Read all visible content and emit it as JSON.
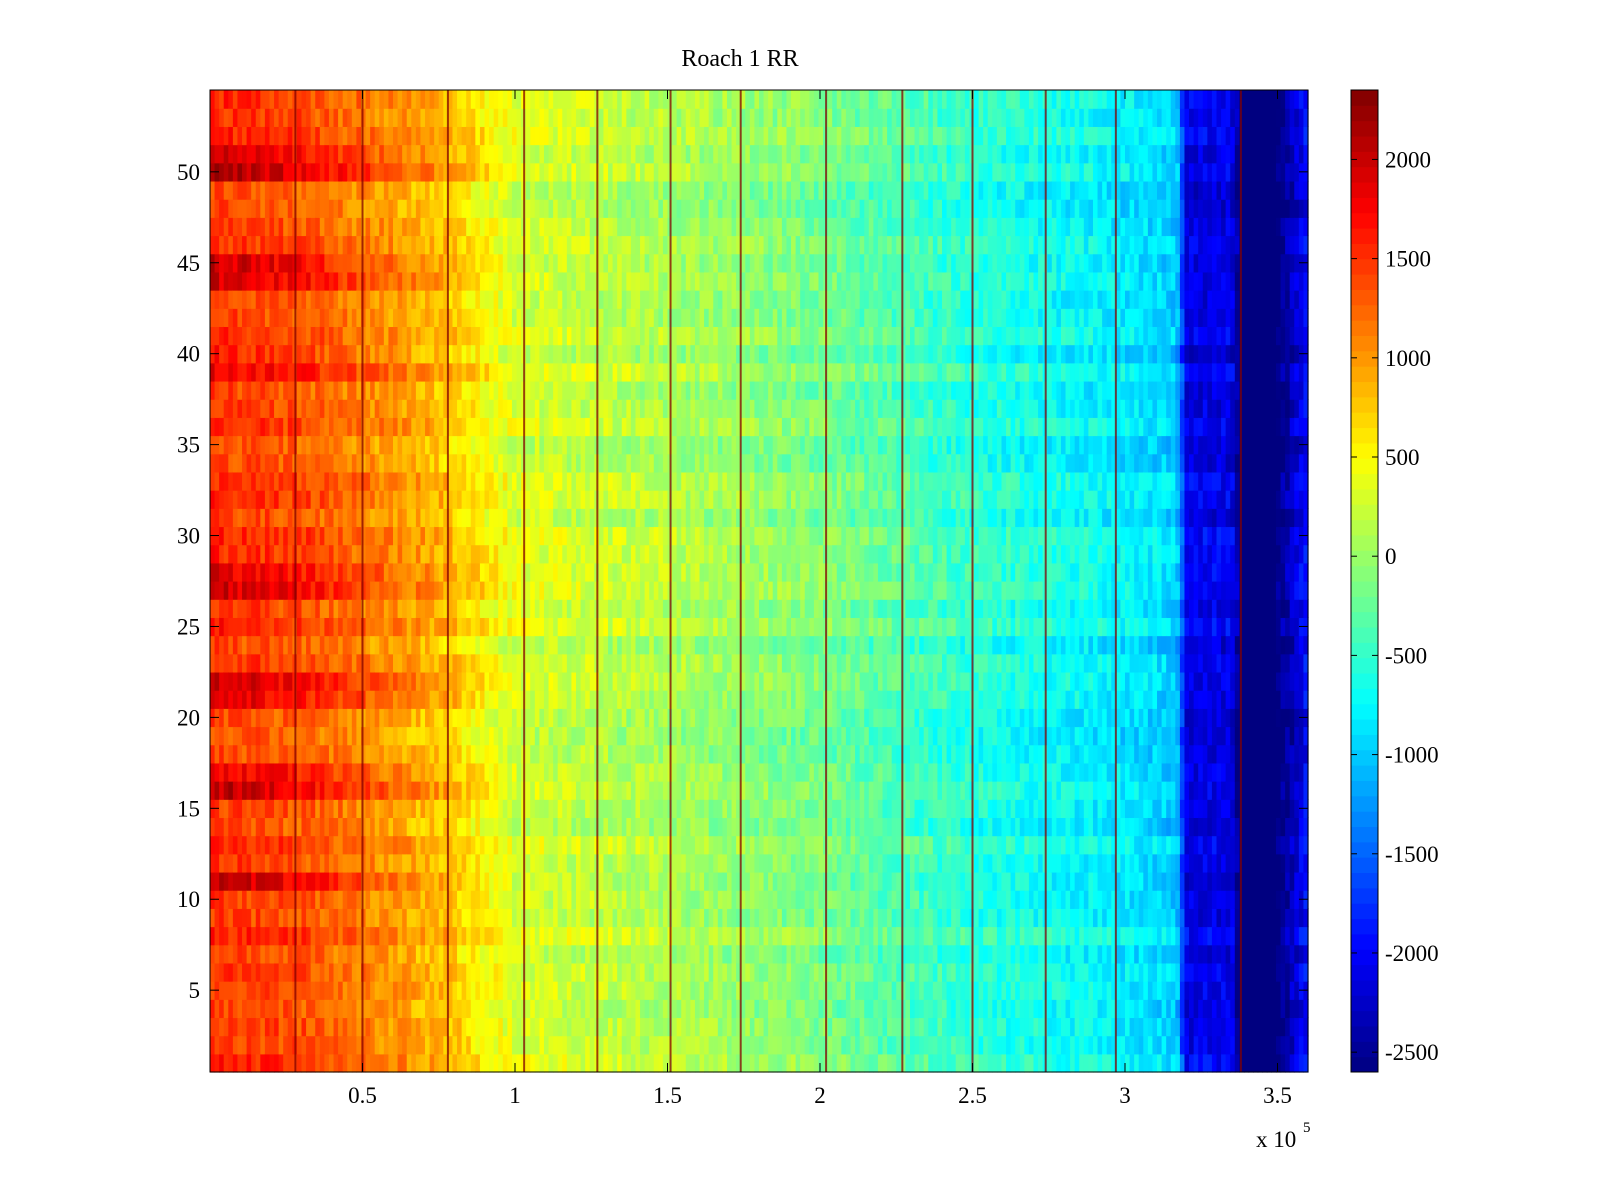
{
  "chart_data": {
    "type": "heatmap",
    "title": "Roach 1 RR",
    "xlabel": "",
    "ylabel": "",
    "x_exponent_label": "x 10",
    "x_exponent_power": "5",
    "xlim": [
      0,
      3.6
    ],
    "ylim": [
      0.5,
      54.5
    ],
    "x_ticks": [
      0.5,
      1,
      1.5,
      2,
      2.5,
      3,
      3.5
    ],
    "x_tick_labels": [
      "0.5",
      "1",
      "1.5",
      "2",
      "2.5",
      "3",
      "3.5"
    ],
    "y_ticks": [
      5,
      10,
      15,
      20,
      25,
      30,
      35,
      40,
      45,
      50
    ],
    "y_tick_labels": [
      "5",
      "10",
      "15",
      "20",
      "25",
      "30",
      "35",
      "40",
      "45",
      "50"
    ],
    "rows": 54,
    "colorbar": {
      "colormap": "jet",
      "clim": [
        -2600,
        2350
      ],
      "ticks": [
        2000,
        1500,
        1000,
        500,
        0,
        -500,
        -1000,
        -1500,
        -2000,
        -2500
      ],
      "tick_labels": [
        "2000",
        "1500",
        "1000",
        "500",
        "0",
        "-500",
        "-1000",
        "-1500",
        "-2000",
        "-2500"
      ]
    },
    "column_profile": {
      "x": [
        0.0,
        0.3,
        0.6,
        0.8,
        1.0,
        1.5,
        2.0,
        2.5,
        2.9,
        3.1,
        3.17,
        3.2,
        3.35,
        3.38,
        3.5,
        3.6
      ],
      "value": [
        1500,
        1350,
        1000,
        750,
        300,
        100,
        -150,
        -550,
        -750,
        -900,
        -1000,
        -2100,
        -2100,
        -2650,
        -2650,
        -1900
      ]
    },
    "hot_rows": [
      {
        "row": 11,
        "value": 2150
      },
      {
        "row": 16,
        "value": 2100
      },
      {
        "row": 17,
        "value": 1900
      },
      {
        "row": 21,
        "value": 1950
      },
      {
        "row": 22,
        "value": 2000
      },
      {
        "row": 27,
        "value": 1900
      },
      {
        "row": 28,
        "value": 1800
      },
      {
        "row": 39,
        "value": 1700
      },
      {
        "row": 40,
        "value": 1750
      },
      {
        "row": 44,
        "value": 2000
      },
      {
        "row": 45,
        "value": 2100
      },
      {
        "row": 50,
        "value": 2150
      },
      {
        "row": 51,
        "value": 2000
      }
    ],
    "vertical_lines_x": [
      0.28,
      0.5,
      0.78,
      1.03,
      1.27,
      1.51,
      1.74,
      2.02,
      2.27,
      2.5,
      2.74,
      2.97,
      3.38
    ],
    "anomaly_column": {
      "x_start": 3.38,
      "x_end": 3.5,
      "value": -2650
    }
  }
}
